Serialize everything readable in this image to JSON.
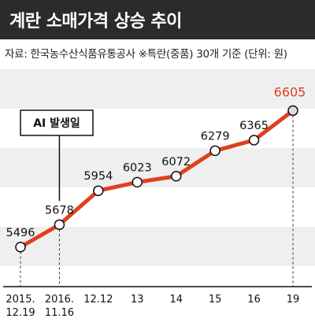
{
  "header": {
    "title": "계란 소매가격 상승 추이",
    "source": "자료: 한국농수산식품유통공사 ※특란(중품) 30개 기준 (단위: 원)"
  },
  "chart_data": {
    "type": "line",
    "title": "계란 소매가격 상승 추이",
    "x_label_lines": [
      [
        "2015.",
        "12.19"
      ],
      [
        "2016.",
        "11.16"
      ],
      [
        "12.12"
      ],
      [
        "13"
      ],
      [
        "14"
      ],
      [
        "15"
      ],
      [
        "16"
      ],
      [
        "19"
      ]
    ],
    "series": [
      {
        "values": [
          5496,
          5678,
          5954,
          6023,
          6072,
          6279,
          6365,
          6605
        ]
      }
    ],
    "annotation": {
      "text": "AI 발생일",
      "category_index": 1
    },
    "ylim": [
      5200,
      6800
    ],
    "colors": {
      "line": "#e0401f",
      "last_label": "#e0401f",
      "band": "#efefef",
      "title_bg": "#2b2b2b"
    }
  }
}
